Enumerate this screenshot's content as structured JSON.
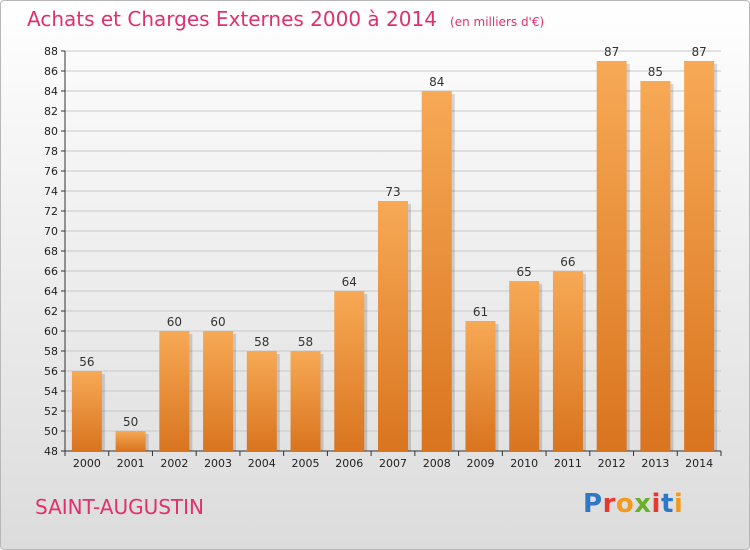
{
  "header": {
    "title": "Achats et Charges Externes 2000 à 2014",
    "subtitle": "(en milliers d'€)"
  },
  "footer": {
    "commune": "SAINT-AUGUSTIN",
    "logo_text": "Proxiti"
  },
  "colors": {
    "title": "#e0306e",
    "bar_light": "#f7a955",
    "bar_dark": "#d9741f",
    "grid": "#c8c8c8"
  },
  "chart_data": {
    "type": "bar",
    "title": "Achats et Charges Externes 2000 à 2014",
    "subtitle": "(en milliers d'€)",
    "categories": [
      "2000",
      "2001",
      "2002",
      "2003",
      "2004",
      "2005",
      "2006",
      "2007",
      "2008",
      "2009",
      "2010",
      "2011",
      "2012",
      "2013",
      "2014"
    ],
    "values": [
      56,
      50,
      60,
      60,
      58,
      58,
      64,
      73,
      84,
      61,
      65,
      66,
      87,
      85,
      87
    ],
    "ylim": [
      48,
      88
    ],
    "yticks": [
      48,
      50,
      52,
      54,
      56,
      58,
      60,
      62,
      64,
      66,
      68,
      70,
      72,
      74,
      76,
      78,
      80,
      82,
      84,
      86,
      88
    ],
    "grid": true,
    "data_labels": true,
    "xlabel": "",
    "ylabel": ""
  }
}
